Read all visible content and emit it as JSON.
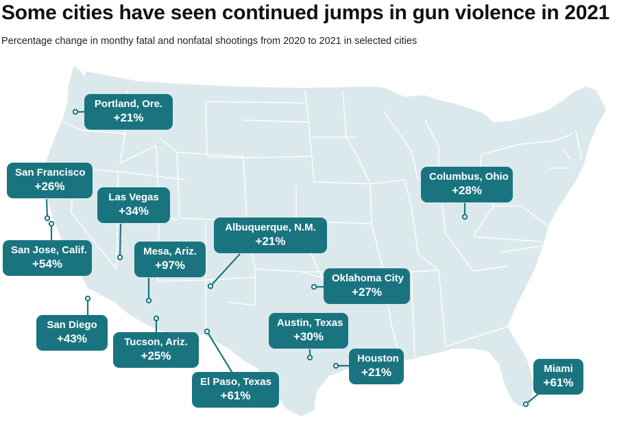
{
  "title": "Some cities have seen continued jumps in gun violence in 2021",
  "subtitle": "Percentage change in monthy fatal and nonfatal shootings from 2020 to 2021 in selected cities",
  "colors": {
    "land": "#dce9ec",
    "border": "#ffffff",
    "callout": "#1a7480",
    "callout_text": "#ffffff"
  },
  "cities": [
    {
      "id": "portland",
      "name": "Portland, Ore.",
      "change": "+21%"
    },
    {
      "id": "san-francisco",
      "name": "San Francisco",
      "change": "+26%"
    },
    {
      "id": "las-vegas",
      "name": "Las Vegas",
      "change": "+34%"
    },
    {
      "id": "san-jose",
      "name": "San Jose, Calif.",
      "change": "+54%"
    },
    {
      "id": "mesa",
      "name": "Mesa, Ariz.",
      "change": "+97%"
    },
    {
      "id": "albuquerque",
      "name": "Albuquerque, N.M.",
      "change": "+21%"
    },
    {
      "id": "columbus",
      "name": "Columbus, Ohio",
      "change": "+28%"
    },
    {
      "id": "oklahoma-city",
      "name": "Oklahoma City",
      "change": "+27%"
    },
    {
      "id": "san-diego",
      "name": "San Diego",
      "change": "+43%"
    },
    {
      "id": "tucson",
      "name": "Tucson, Ariz.",
      "change": "+25%"
    },
    {
      "id": "austin",
      "name": "Austin, Texas",
      "change": "+30%"
    },
    {
      "id": "houston",
      "name": "Houston",
      "change": "+21%"
    },
    {
      "id": "el-paso",
      "name": "El Paso, Texas",
      "change": "+61%"
    },
    {
      "id": "miami",
      "name": "Miami",
      "change": "+61%"
    }
  ]
}
